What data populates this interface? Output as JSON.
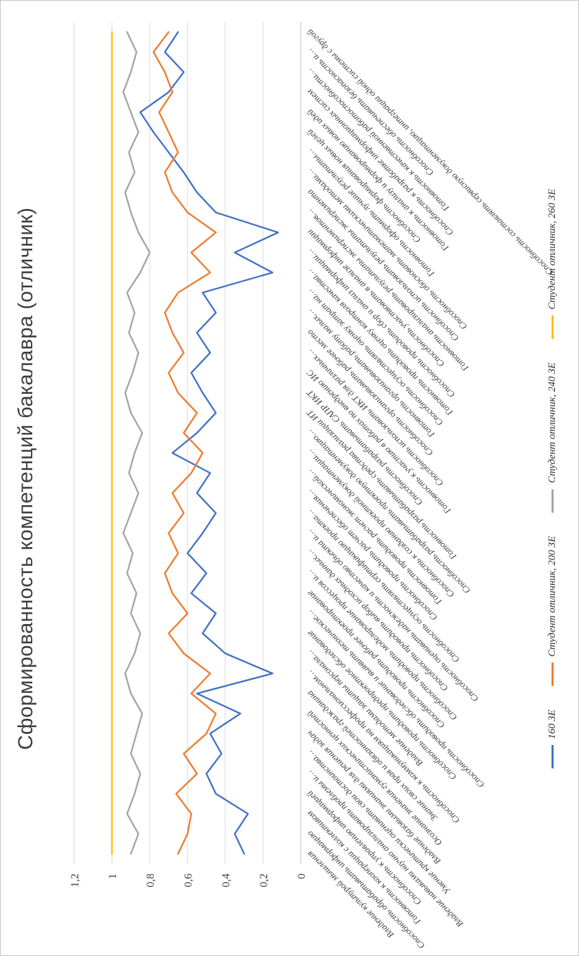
{
  "chart_data": {
    "type": "line",
    "title": "Сформированность компетенций бакалавра (отличник)",
    "xlabel": "",
    "ylabel": "",
    "grid": true,
    "legend_position": "bottom",
    "orientation": "rotated-90-ccw",
    "value_axis": {
      "min": 0,
      "max": 1.2,
      "step": 0.2,
      "tick_labels": [
        "0",
        "0,2",
        "0,4",
        "0,6",
        "0,8",
        "1",
        "1,2"
      ]
    },
    "categories": [
      "Владение культурой мышления",
      "Способность обрабатывать информацию",
      "Готовность к кооперации с коллективом",
      "Способность к управлению информацией",
      "Владение навыками научно анализировать проблемы и…",
      "Умение критически оценивать свои достоинства…",
      "Владение базовыми знаниями для решения задач",
      "Осознание значения гуманистических ценностей",
      "Знание своих прав и обязанностей гражданина",
      "Способность к коммуникациям на профессиональном…",
      "Владение методами защиты персонала…",
      "Способность проводить предпроектное обследование",
      "Способность проводить обследование и выявить техническое…",
      "Способность проводить рабочее проектирование",
      "Способность проводить моделирование процессов и…",
      "Способность проводить выбор исходных данных…",
      "Способность оценивать надежность и качество объекта и…",
      "Способность осуществлять сертификацию проекта…",
      "Способность проводить расчет обеспечения…",
      "Готовность проводить расчет экономической…",
      "Способность к созданию проектной документации…",
      "Способность разрабатывать проектную документацию…",
      "Готовность разрабатывать средства реализации ИТ",
      "Способность разрабатывать САПР ИКТ",
      "Готовность к участию в работах по внедрению ИС",
      "Способность использовать ИКТ для различных…",
      "Способность организовывать рабочее место",
      "Готовность организовывать работу малых…",
      "Способность осуществлять оценку затрат на…",
      "Готовность проводить оценку контроля качества…",
      "Способность проводить сбор и анализ информации…",
      "Способность участвовать в анализе информации",
      "Готовность анализировать результаты экспериментов…",
      "Способность использовать результаты эксперимента",
      "Способность обосновать математическими методами…",
      "Готовность оформить лучшие результаты…",
      "Способность формирования новых целей",
      "Готовность к анализу и формированию новых идей",
      "Способность к разработке информационных систем",
      "Готовность к качественной работоспособности…",
      "Способность обеспечивать безопасность и…",
      "Способность составлять сервисную документацию, интеграции одной системы с другой"
    ],
    "series": [
      {
        "name": "160 ЗЕ",
        "color": "#4472C4",
        "values": [
          0.3,
          0.35,
          0.28,
          0.45,
          0.5,
          0.42,
          0.48,
          0.32,
          0.55,
          0.15,
          0.4,
          0.52,
          0.45,
          0.58,
          0.5,
          0.6,
          0.52,
          0.45,
          0.55,
          0.48,
          0.68,
          0.55,
          0.45,
          0.52,
          0.58,
          0.48,
          0.55,
          0.45,
          0.52,
          0.15,
          0.35,
          0.12,
          0.45,
          0.55,
          0.62,
          0.7,
          0.78,
          0.85,
          0.7,
          0.62,
          0.72,
          0.65
        ]
      },
      {
        "name": "Студент отличник, 200 ЗЕ",
        "color": "#ED7D31",
        "values": [
          0.65,
          0.6,
          0.58,
          0.66,
          0.55,
          0.62,
          0.5,
          0.45,
          0.58,
          0.48,
          0.62,
          0.7,
          0.6,
          0.68,
          0.72,
          0.65,
          0.7,
          0.62,
          0.68,
          0.58,
          0.52,
          0.62,
          0.55,
          0.65,
          0.7,
          0.62,
          0.68,
          0.72,
          0.65,
          0.48,
          0.58,
          0.45,
          0.6,
          0.68,
          0.72,
          0.65,
          0.7,
          0.75,
          0.68,
          0.72,
          0.78,
          0.7
        ]
      },
      {
        "name": "Студент отличник, 240 ЗЕ",
        "color": "#A5A5A5",
        "values": [
          0.9,
          0.86,
          0.92,
          0.88,
          0.85,
          0.9,
          0.87,
          0.84,
          0.9,
          0.93,
          0.88,
          0.85,
          0.9,
          0.87,
          0.92,
          0.89,
          0.94,
          0.9,
          0.86,
          0.91,
          0.88,
          0.84,
          0.9,
          0.93,
          0.89,
          0.86,
          0.91,
          0.88,
          0.92,
          0.85,
          0.8,
          0.86,
          0.9,
          0.93,
          0.88,
          0.91,
          0.86,
          0.9,
          0.94,
          0.9,
          0.87,
          0.92
        ]
      },
      {
        "name": "Студент отличник, 260 ЗЕ",
        "color": "#FFC000",
        "values": [
          1,
          1,
          1,
          1,
          1,
          1,
          1,
          1,
          1,
          1,
          1,
          1,
          1,
          1,
          1,
          1,
          1,
          1,
          1,
          1,
          1,
          1,
          1,
          1,
          1,
          1,
          1,
          1,
          1,
          1,
          1,
          1,
          1,
          1,
          1,
          1,
          1,
          1,
          1,
          1,
          1,
          1
        ]
      }
    ]
  }
}
